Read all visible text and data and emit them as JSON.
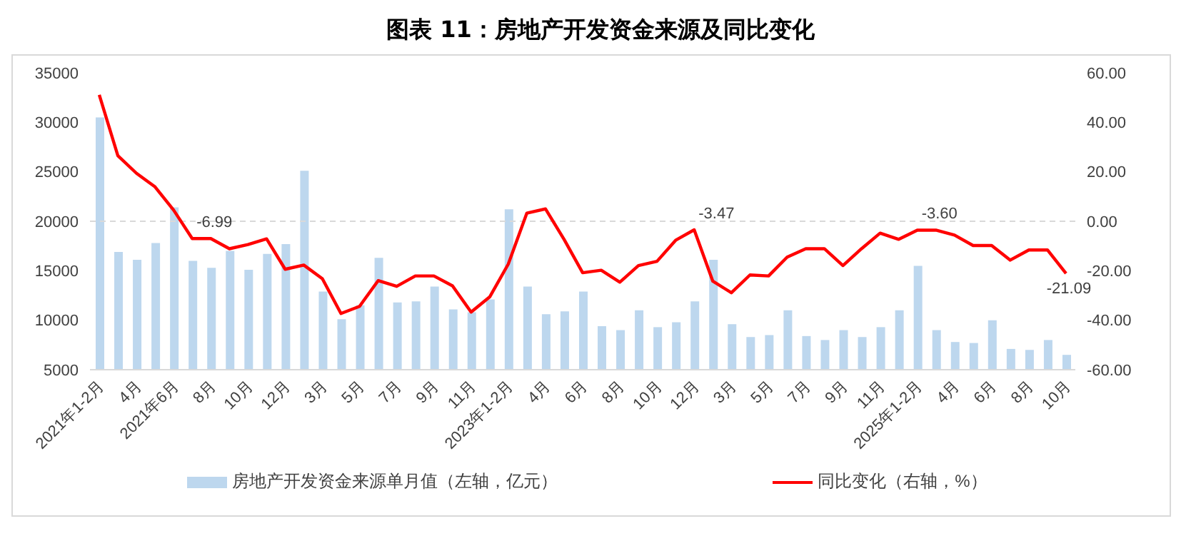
{
  "chart_data": {
    "type": "bar",
    "title": "图表 11：房地产开发资金来源及同比变化",
    "categories": [
      "2021年1-2月",
      null,
      "4月",
      null,
      "2021年6月",
      null,
      "8月",
      null,
      "10月",
      null,
      "12月",
      null,
      "3月",
      null,
      "5月",
      null,
      "7月",
      null,
      "9月",
      null,
      "11月",
      null,
      "2023年1-2月",
      null,
      "4月",
      null,
      "6月",
      null,
      "8月",
      null,
      "10月",
      null,
      "12月",
      null,
      "3月",
      null,
      "5月",
      null,
      "7月",
      null,
      "9月",
      null,
      "11月",
      null,
      "2025年1-2月",
      null,
      "4月",
      null,
      "6月",
      null,
      "8月",
      null,
      "10月"
    ],
    "series": [
      {
        "name": "房地产开发资金来源单月值（左轴，亿元）",
        "color": "#bdd7ee",
        "values": [
          30500,
          16900,
          16100,
          17800,
          21400,
          16000,
          15300,
          17000,
          15100,
          16700,
          17700,
          25100,
          12900,
          10100,
          11500,
          16300,
          11800,
          11900,
          13400,
          11100,
          10800,
          12100,
          21200,
          13400,
          10600,
          10900,
          12900,
          9400,
          9000,
          11000,
          9300,
          9800,
          11900,
          16100,
          9600,
          8300,
          8500,
          11000,
          8400,
          8000,
          9000,
          8300,
          9300,
          11000,
          15500,
          9000,
          7800,
          7700,
          10000,
          7100,
          7000,
          8000,
          6500
        ]
      },
      {
        "name": "同比变化（右轴，%）",
        "type": "line",
        "axis": "y2",
        "color": "#ff0000",
        "values": [
          51.1,
          26.5,
          19.4,
          13.9,
          4.5,
          -6.99,
          -7.0,
          -11.1,
          -9.4,
          -7.1,
          -19.4,
          -17.7,
          -23.2,
          -37.3,
          -34.4,
          -24.0,
          -26.3,
          -22.1,
          -22.1,
          -26.1,
          -36.7,
          -30.6,
          -17.3,
          3.3,
          5.0,
          -7.3,
          -20.8,
          -19.8,
          -24.6,
          -17.9,
          -16.2,
          -7.7,
          -3.47,
          -24.2,
          -28.9,
          -21.7,
          -22.1,
          -14.5,
          -11.1,
          -11.1,
          -17.9,
          -11.1,
          -4.8,
          -7.3,
          -3.6,
          -3.6,
          -5.6,
          -9.8,
          -9.8,
          -15.7,
          -11.6,
          -11.6,
          -21.09
        ],
        "value_labels": [
          null,
          null,
          null,
          null,
          null,
          "-6.99",
          null,
          null,
          null,
          null,
          null,
          null,
          null,
          null,
          null,
          null,
          null,
          null,
          null,
          null,
          null,
          null,
          null,
          null,
          null,
          null,
          null,
          null,
          null,
          null,
          null,
          null,
          "-3.47",
          null,
          null,
          null,
          null,
          null,
          null,
          null,
          null,
          null,
          null,
          null,
          "-3.60",
          null,
          null,
          null,
          null,
          null,
          null,
          null,
          "-21.09"
        ]
      }
    ],
    "ylim": [
      5000,
      35000
    ],
    "yticks": [
      5000,
      10000,
      15000,
      20000,
      25000,
      30000,
      35000
    ],
    "y2lim": [
      -60,
      60
    ],
    "y2ticks": [
      {
        "value": -60,
        "label": "-60.00"
      },
      {
        "value": -40,
        "label": "-40.00"
      },
      {
        "value": -20,
        "label": "-20.00"
      },
      {
        "value": 0,
        "label": "0.00"
      },
      {
        "value": 20,
        "label": "20.00"
      },
      {
        "value": 40,
        "label": "40.00"
      },
      {
        "value": 60,
        "label": "60.00"
      }
    ],
    "ref_lines": [
      {
        "axis": "y2",
        "value": 0,
        "color": "#d9d9d9",
        "line_style": "dashed"
      }
    ],
    "legend": "bottom",
    "grid": false
  }
}
